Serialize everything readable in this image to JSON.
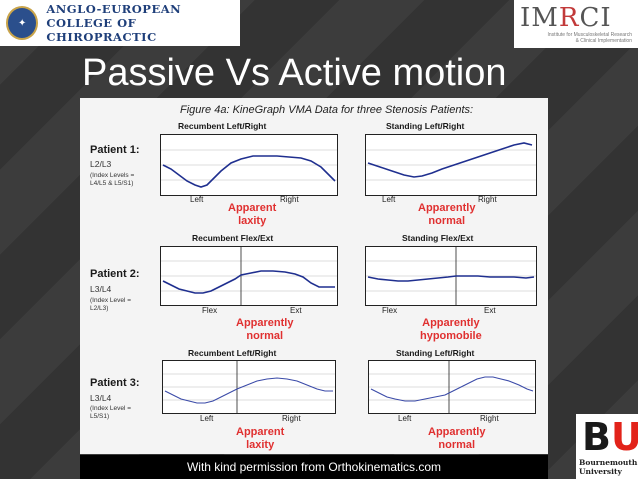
{
  "header": {
    "aecc_line1": "ANGLO-EUROPEAN",
    "aecc_line2": "COLLEGE OF CHIROPRACTIC",
    "imrci_logo": "IMRCI",
    "imrci_sub1": "Institute for Musculoskeletal Research",
    "imrci_sub2": "& Clinical Implementation"
  },
  "slide_title": "Passive Vs Active motion",
  "figure": {
    "title": "Figure 4a: KineGraph VMA Data for three Stenosis Patients:",
    "patients": [
      {
        "label": "Patient 1:",
        "level": "L2/L3",
        "index": [
          "(Index Levels =",
          "L4/L5 & L5/S1)"
        ],
        "left_panel": {
          "title": "Recumbent Left/Right",
          "left_end": "Left",
          "right_end": "Right",
          "verdict": [
            "Apparent",
            "laxity"
          ]
        },
        "right_panel": {
          "title": "Standing Left/Right",
          "left_end": "Left",
          "right_end": "Right",
          "verdict": [
            "Apparently",
            "normal"
          ]
        }
      },
      {
        "label": "Patient 2:",
        "level": "L3/L4",
        "index": [
          "(Index Level =",
          "L2/L3)"
        ],
        "left_panel": {
          "title": "Recumbent Flex/Ext",
          "left_end": "Flex",
          "right_end": "Ext",
          "verdict": [
            "Apparently",
            "normal"
          ]
        },
        "right_panel": {
          "title": "Standing Flex/Ext",
          "left_end": "Flex",
          "right_end": "Ext",
          "verdict": [
            "Apparently",
            "hypomobile"
          ]
        }
      },
      {
        "label": "Patient 3:",
        "level": "L3/L4",
        "index": [
          "(Index Level =",
          "L5/S1)"
        ],
        "left_panel": {
          "title": "Recumbent Left/Right",
          "left_end": "Left",
          "right_end": "Right",
          "verdict": [
            "Apparent",
            "laxity"
          ]
        },
        "right_panel": {
          "title": "Standing Left/Right",
          "left_end": "Left",
          "right_end": "Right",
          "verdict": [
            "Apparently",
            "normal"
          ]
        }
      }
    ]
  },
  "footer": "With kind permission from Orthokinematics.com",
  "bu_logo": {
    "mark_b": "B",
    "mark_u": "U",
    "line1": "Bournemouth",
    "line2": "University"
  },
  "colors": {
    "trace": "#1f2f8f",
    "verdict": "#e03030",
    "title": "#ffffff"
  }
}
